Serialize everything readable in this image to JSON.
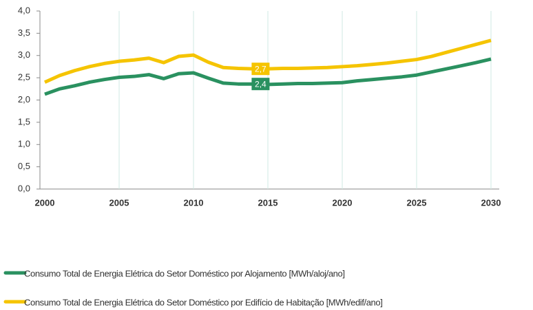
{
  "chart_data": {
    "type": "line",
    "x": [
      2000,
      2001,
      2002,
      2003,
      2004,
      2005,
      2006,
      2007,
      2008,
      2009,
      2010,
      2011,
      2012,
      2013,
      2014,
      2015,
      2016,
      2017,
      2018,
      2019,
      2020,
      2021,
      2022,
      2023,
      2024,
      2025,
      2026,
      2027,
      2028,
      2029,
      2030
    ],
    "series": [
      {
        "name": "Consumo Total de Energia Elétrica do Setor Doméstico por Alojamento [MWh/aloj/ano]",
        "color": "#2a9160",
        "values": [
          2.13,
          2.25,
          2.32,
          2.4,
          2.46,
          2.51,
          2.53,
          2.57,
          2.48,
          2.59,
          2.61,
          2.49,
          2.38,
          2.36,
          2.36,
          2.35,
          2.36,
          2.37,
          2.37,
          2.38,
          2.39,
          2.43,
          2.46,
          2.49,
          2.52,
          2.56,
          2.63,
          2.7,
          2.77,
          2.84,
          2.92
        ],
        "value_labels": [
          null,
          null,
          null,
          null,
          null,
          null,
          null,
          null,
          null,
          null,
          null,
          null,
          null,
          null,
          "2,4",
          null,
          null,
          null,
          null,
          null,
          null,
          null,
          null,
          null,
          null,
          null,
          null,
          null,
          null,
          null,
          null
        ]
      },
      {
        "name": "Consumo Total de Energia Elétrica do Setor Doméstico por Edifício de Habitação [MWh/edif/ano]",
        "color": "#f5c400",
        "values": [
          2.4,
          2.55,
          2.66,
          2.75,
          2.82,
          2.87,
          2.9,
          2.94,
          2.84,
          2.98,
          3.01,
          2.85,
          2.73,
          2.71,
          2.7,
          2.7,
          2.71,
          2.71,
          2.72,
          2.73,
          2.75,
          2.77,
          2.8,
          2.83,
          2.87,
          2.91,
          2.98,
          3.07,
          3.16,
          3.25,
          3.34
        ],
        "value_labels": [
          null,
          null,
          null,
          null,
          null,
          null,
          null,
          null,
          null,
          null,
          null,
          null,
          null,
          null,
          "2,7",
          null,
          null,
          null,
          null,
          null,
          null,
          null,
          null,
          null,
          null,
          null,
          null,
          null,
          null,
          null,
          null
        ]
      }
    ],
    "xlim": [
      2000,
      2030
    ],
    "xticks": [
      2000,
      2005,
      2010,
      2015,
      2020,
      2025,
      2030
    ],
    "ylim": [
      0,
      4
    ],
    "yticks": [
      {
        "value": 0,
        "label": "0,0"
      },
      {
        "value": 0.5,
        "label": "0,5"
      },
      {
        "value": 1,
        "label": "1,0"
      },
      {
        "value": 1.5,
        "label": "1,5"
      },
      {
        "value": 2,
        "label": "2,0"
      },
      {
        "value": 2.5,
        "label": "2,5"
      },
      {
        "value": 3,
        "label": "3,0"
      },
      {
        "value": 3.5,
        "label": "3,5"
      },
      {
        "value": 4,
        "label": "4,0"
      }
    ],
    "grid": true
  }
}
